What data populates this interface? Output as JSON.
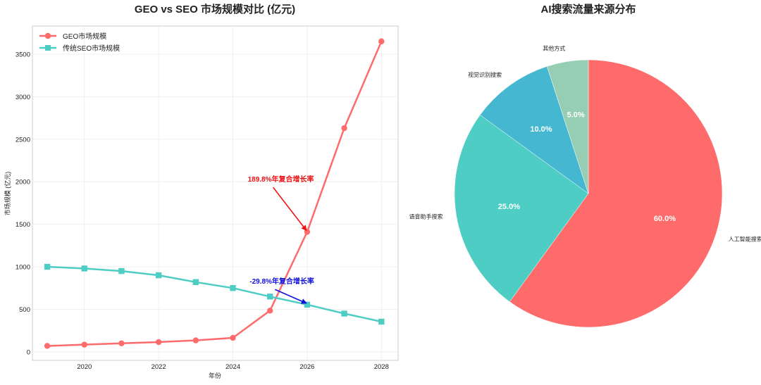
{
  "chart_data": [
    {
      "type": "line",
      "title": "GEO vs SEO 市场规模对比 (亿元)",
      "xlabel": "年份",
      "ylabel": "市场规模 (亿元)",
      "xlim": [
        2018.6,
        2028.45
      ],
      "ylim": [
        -100,
        3830
      ],
      "x_ticks": [
        2020,
        2022,
        2024,
        2026,
        2028
      ],
      "y_ticks": [
        0,
        500,
        1000,
        1500,
        2000,
        2500,
        3000,
        3500
      ],
      "grid": true,
      "legend_position": "top-left",
      "x": [
        2019,
        2020,
        2021,
        2022,
        2023,
        2024,
        2025,
        2026,
        2027,
        2028
      ],
      "series": [
        {
          "name": "GEO市场规模",
          "color": "#ff6b6b",
          "marker": "circle",
          "values": [
            70,
            85,
            100,
            115,
            135,
            165,
            485,
            1410,
            2630,
            3650
          ]
        },
        {
          "name": "传统SEO市场规模",
          "color": "#4ecdc4",
          "marker": "square",
          "values": [
            1000,
            980,
            950,
            900,
            820,
            750,
            650,
            555,
            450,
            355
          ]
        }
      ],
      "annotations": [
        {
          "text": "189.8%年复合增长率",
          "color": "#ee1111",
          "text_at": [
            2024.4,
            2000
          ],
          "arrow_to": [
            2026,
            1410
          ]
        },
        {
          "text": "-29.8%年复合增长率",
          "color": "#1111dd",
          "text_at": [
            2024.45,
            800
          ],
          "arrow_to": [
            2026,
            555
          ]
        }
      ]
    },
    {
      "type": "pie",
      "title": "AI搜索流量来源分布",
      "start_angle_deg": 90,
      "direction": "clockwise",
      "slices": [
        {
          "label": "人工智能搜索",
          "value": 60.0,
          "pct_label": "60.0%",
          "color": "#ff6b6b"
        },
        {
          "label": "语音助手搜索",
          "value": 25.0,
          "pct_label": "25.0%",
          "color": "#4ecdc4"
        },
        {
          "label": "视觉识别搜索",
          "value": 10.0,
          "pct_label": "10.0%",
          "color": "#45b7d1"
        },
        {
          "label": "其他方式",
          "value": 5.0,
          "pct_label": "5.0%",
          "color": "#96ceb4"
        }
      ]
    }
  ]
}
